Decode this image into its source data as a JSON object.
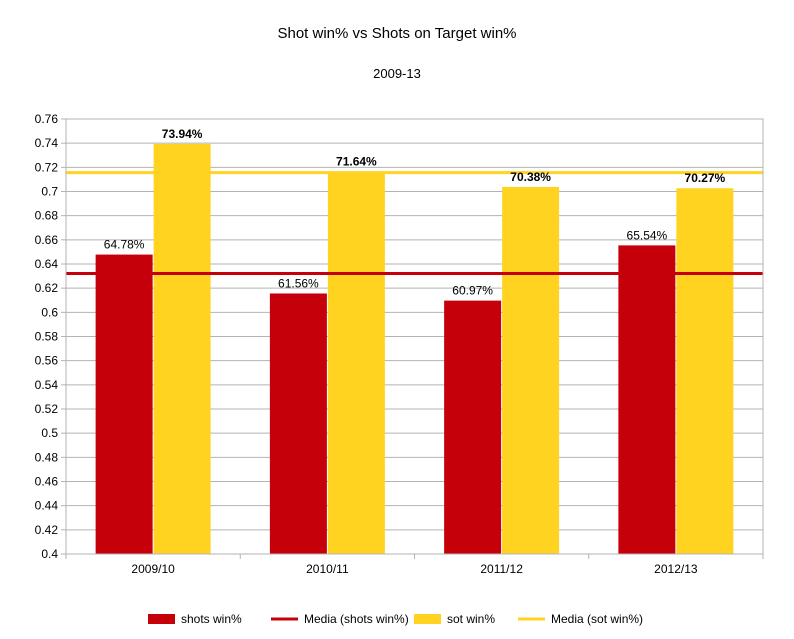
{
  "chart_data": {
    "type": "bar",
    "title": "Shot win% vs Shots on Target win%",
    "subtitle": "2009-13",
    "categories": [
      "2009/10",
      "2010/11",
      "2011/12",
      "2012/13"
    ],
    "series": [
      {
        "name": "shots win%",
        "values": [
          0.6478,
          0.6156,
          0.6097,
          0.6554
        ],
        "labels": [
          "64.78%",
          "61.56%",
          "60.97%",
          "65.54%"
        ],
        "color": "#c5000b",
        "label_bold": false
      },
      {
        "name": "sot win%",
        "values": [
          0.7394,
          0.7164,
          0.7038,
          0.7027
        ],
        "labels": [
          "73.94%",
          "71.64%",
          "70.38%",
          "70.27%"
        ],
        "color": "#ffd320",
        "label_bold": true
      }
    ],
    "reference_lines": [
      {
        "name": "Media (shots win%)",
        "value": 0.6321,
        "color": "#c5000b"
      },
      {
        "name": "Media (sot win%)",
        "value": 0.7156,
        "color": "#ffd320"
      }
    ],
    "ylim": [
      0.4,
      0.76
    ],
    "yticks": [
      "0.4",
      "0.42",
      "0.44",
      "0.46",
      "0.48",
      "0.5",
      "0.52",
      "0.54",
      "0.56",
      "0.58",
      "0.6",
      "0.62",
      "0.64",
      "0.66",
      "0.68",
      "0.7",
      "0.72",
      "0.74",
      "0.76"
    ],
    "grid": true,
    "legend_position": "bottom",
    "xlabel": "",
    "ylabel": ""
  }
}
